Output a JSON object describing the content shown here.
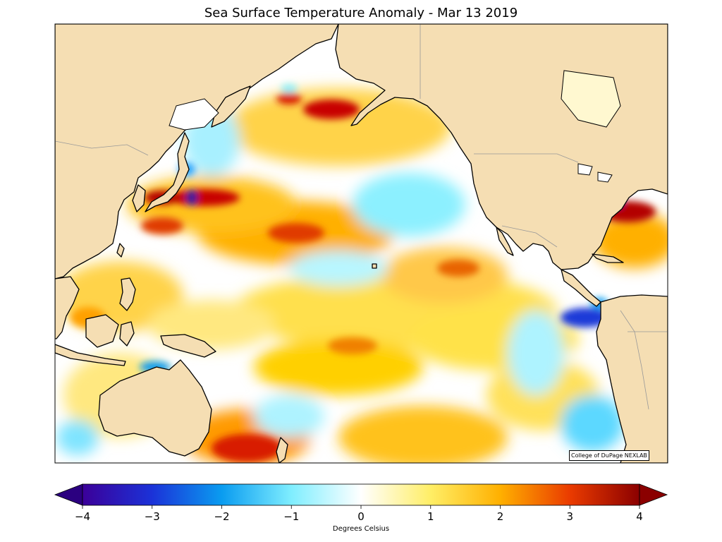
{
  "title": "Sea Surface Temperature Anomaly - Mar 13 2019",
  "credit": "College of DuPage NEXLAB",
  "colorbar": {
    "label": "Degrees Celsius",
    "range": [
      -4,
      4
    ],
    "ticks": [
      "−4",
      "−3",
      "−2",
      "−1",
      "0",
      "1",
      "2",
      "3",
      "4"
    ],
    "extend": "both"
  },
  "colors": {
    "land": "#f5deb3",
    "ocean_neutral": "#ffffff",
    "coastline": "#000000",
    "border": "#999999",
    "scale": [
      "#3b0099",
      "#1b32d8",
      "#0a9cf0",
      "#7feeff",
      "#ffffff",
      "#ffee66",
      "#ffb000",
      "#ea3b00",
      "#8b0000"
    ]
  },
  "map": {
    "projection": "Pacific basin, 60°E–60°W",
    "regions": [
      {
        "name": "Asia"
      },
      {
        "name": "North America"
      },
      {
        "name": "South America"
      },
      {
        "name": "Australia"
      },
      {
        "name": "Alaska"
      },
      {
        "name": "Japan"
      },
      {
        "name": "Papua New Guinea"
      },
      {
        "name": "Indonesia"
      },
      {
        "name": "Philippines"
      }
    ]
  }
}
